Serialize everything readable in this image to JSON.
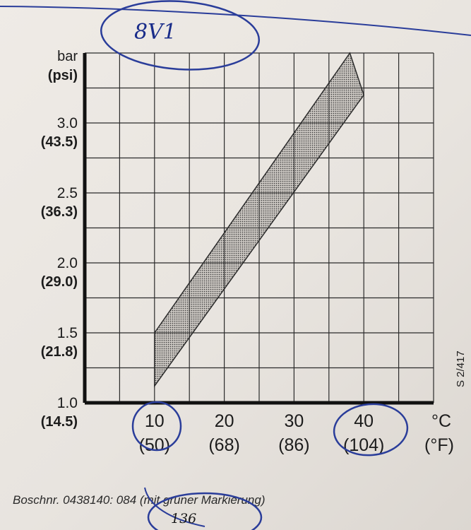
{
  "chart_data": {
    "type": "area",
    "x_axis": {
      "unit_top": "°C",
      "unit_bottom": "(°F)",
      "ticks": [
        {
          "value": 10,
          "label": "10",
          "sub": "(50)"
        },
        {
          "value": 20,
          "label": "20",
          "sub": "(68)"
        },
        {
          "value": 30,
          "label": "30",
          "sub": "(86)"
        },
        {
          "value": 40,
          "label": "40",
          "sub": "(104)"
        }
      ],
      "xlim": [
        0,
        50
      ]
    },
    "y_axis": {
      "unit_top": "bar",
      "unit_bottom": "(psi)",
      "ticks": [
        {
          "value": 1.0,
          "label": "1.0",
          "sub": "(14.5)"
        },
        {
          "value": 1.5,
          "label": "1.5",
          "sub": "(21.8)"
        },
        {
          "value": 2.0,
          "label": "2.0",
          "sub": "(29.0)"
        },
        {
          "value": 2.5,
          "label": "2.5",
          "sub": "(36.3)"
        },
        {
          "value": 3.0,
          "label": "3.0",
          "sub": "(43.5)"
        }
      ],
      "ylim": [
        1.0,
        3.5
      ]
    },
    "grid": true,
    "band": {
      "upper": [
        {
          "x": 10,
          "y": 1.5
        },
        {
          "x": 38,
          "y": 3.5
        }
      ],
      "lower": [
        {
          "x": 10,
          "y": 1.12
        },
        {
          "x": 40,
          "y": 3.2
        }
      ]
    },
    "reference_code": "S 2/417"
  },
  "footer": {
    "text": "Boschnr. 0438140: 084 (mit grüner Markierung)"
  },
  "handwriting": {
    "top_note": "8V1",
    "bottom_note": "136"
  }
}
